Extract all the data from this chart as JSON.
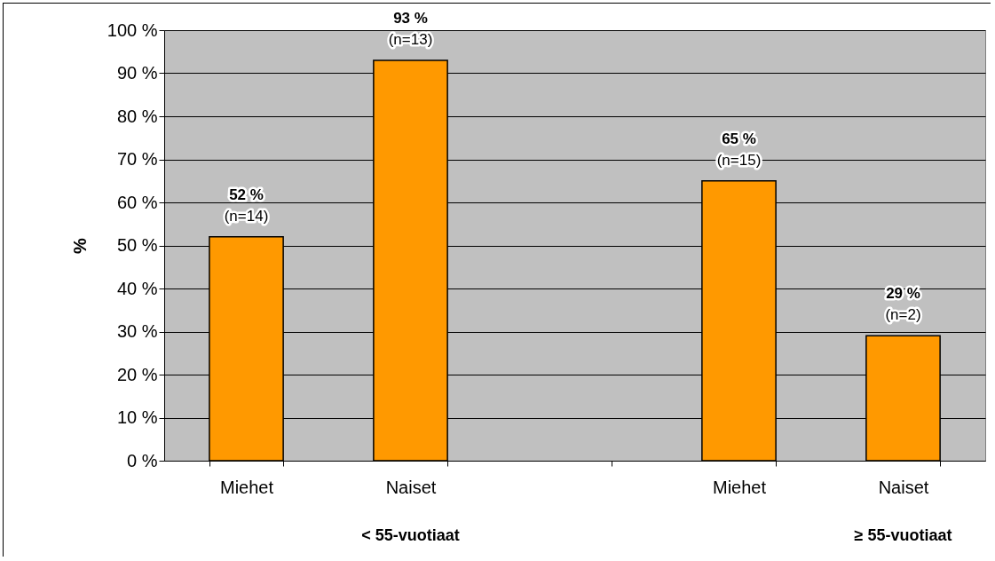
{
  "chart_data": {
    "type": "bar",
    "ylabel": "%",
    "categories": [
      "Miehet",
      "Naiset",
      null,
      "Miehet",
      "Naiset"
    ],
    "values": [
      52,
      93,
      null,
      65,
      29
    ],
    "color": "#ff9900",
    "value_labels": [
      "52 %\n(n=14)",
      "93 %\n(n=13)",
      null,
      "65 %\n(n=15)",
      "29 %\n(n=2)"
    ],
    "annotations": [
      "< 55-vuotiaat",
      "≥ 55-vuotiaat"
    ],
    "ylim": [
      0,
      100
    ],
    "yticks": [
      {
        "value": 0,
        "label": "0 %"
      },
      {
        "value": 10,
        "label": "10 %"
      },
      {
        "value": 20,
        "label": "20 %"
      },
      {
        "value": 30,
        "label": "30 %"
      },
      {
        "value": 40,
        "label": "40 %"
      },
      {
        "value": 50,
        "label": "50 %"
      },
      {
        "value": 60,
        "label": "60 %"
      },
      {
        "value": 70,
        "label": "70 %"
      },
      {
        "value": 80,
        "label": "80 %"
      },
      {
        "value": 90,
        "label": "90 %"
      },
      {
        "value": 100,
        "label": "100 %"
      }
    ],
    "grid": "y"
  }
}
